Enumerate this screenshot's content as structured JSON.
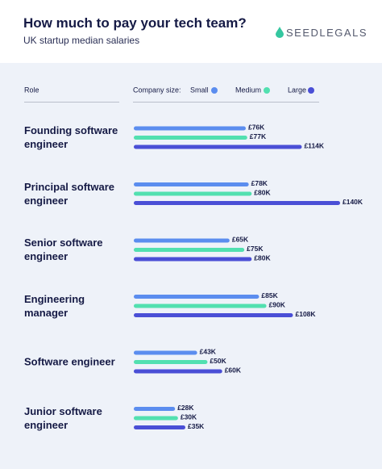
{
  "chart_data": {
    "type": "bar",
    "orientation": "horizontal",
    "title": "How much to pay your tech team?",
    "subtitle": "UK startup median salaries",
    "brand": "SEEDLEGALS",
    "category_header": "Role",
    "legend_title": "Company size:",
    "categories": [
      "Founding software engineer",
      "Principal software engineer",
      "Senior software engineer",
      "Engineering manager",
      "Software engineer",
      "Junior software engineer"
    ],
    "xlim": [
      0,
      140
    ],
    "series": [
      {
        "name": "Small",
        "color": "#5b8def",
        "values": [
          76,
          78,
          65,
          85,
          43,
          28
        ],
        "value_labels": [
          "£76K",
          "£78K",
          "£65K",
          "£85K",
          "£43K",
          "£28K"
        ]
      },
      {
        "name": "Medium",
        "color": "#52e0b0",
        "values": [
          77,
          80,
          75,
          90,
          50,
          30
        ],
        "value_labels": [
          "£77K",
          "£80K",
          "£75K",
          "£90K",
          "£50K",
          "£30K"
        ]
      },
      {
        "name": "Large",
        "color": "#4a4fd6",
        "values": [
          114,
          140,
          80,
          108,
          60,
          35
        ],
        "value_labels": [
          "£114K",
          "£140K",
          "£80K",
          "£108K",
          "£60K",
          "£35K"
        ]
      }
    ]
  }
}
